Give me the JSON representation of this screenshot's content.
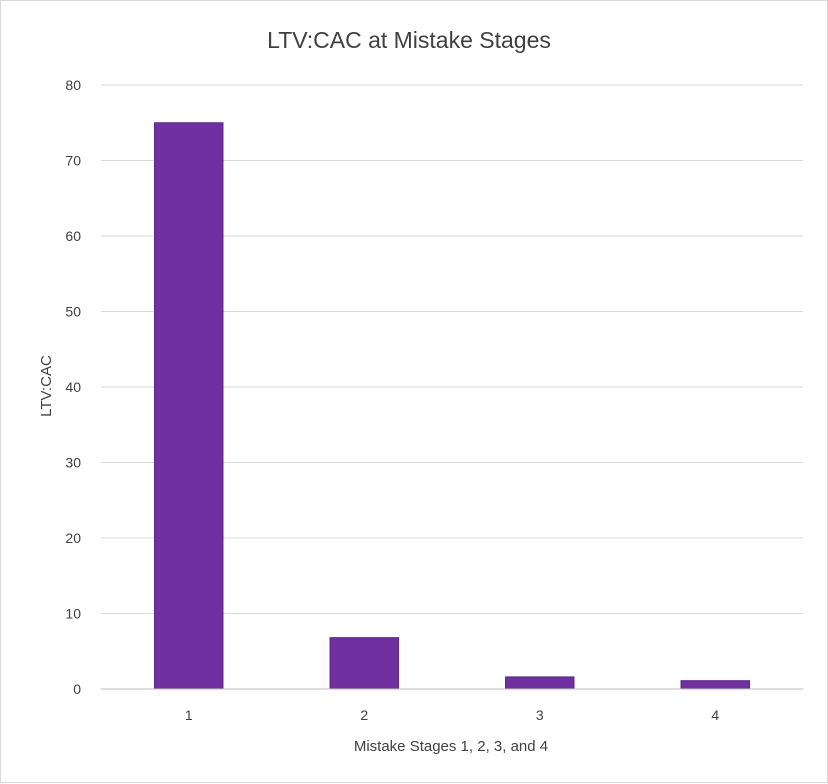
{
  "chart_data": {
    "type": "bar",
    "title": "LTV:CAC at Mistake Stages",
    "xlabel": "Mistake Stages 1, 2, 3, and 4",
    "ylabel": "LTV:CAC",
    "categories": [
      "1",
      "2",
      "3",
      "4"
    ],
    "values": [
      75,
      6.8,
      1.6,
      1.1
    ],
    "ylim": [
      0,
      80
    ],
    "yticks": [
      "0",
      "10",
      "20",
      "30",
      "40",
      "50",
      "60",
      "70",
      "80"
    ],
    "grid": true,
    "legend": "none",
    "colors": {
      "bar_fill": "#7030a0",
      "bar_stroke": "#5b2483",
      "grid": "#d9d9d9",
      "axis": "#bfbfbf",
      "text": "#404040"
    }
  }
}
